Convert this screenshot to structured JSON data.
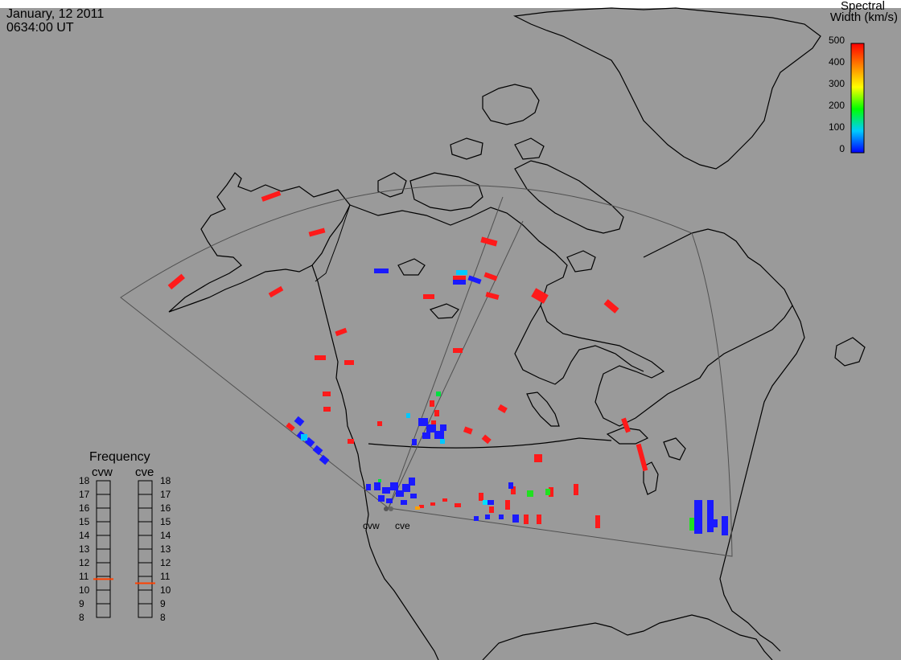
{
  "header": {
    "date": "January, 12 2011",
    "time": "0634:00 UT"
  },
  "colorbar": {
    "title_line1": "Spectral",
    "title_line2": "Width (km/s)",
    "ticks": [
      "500",
      "400",
      "300",
      "200",
      "100",
      "0"
    ],
    "min": 0,
    "max": 500
  },
  "frequency_panel": {
    "title": "Frequency",
    "columns": [
      {
        "label": "cvw",
        "selected_mhz": 10.8
      },
      {
        "label": "cve",
        "selected_mhz": 10.5
      }
    ],
    "scale_left": [
      "18",
      "17",
      "16",
      "15",
      "14",
      "13",
      "12",
      "11",
      "10",
      "9",
      "8"
    ],
    "scale_right": [
      "18",
      "17",
      "16",
      "15",
      "14",
      "13",
      "12",
      "11",
      "10",
      "9",
      "8"
    ],
    "marker_color": "#ff4000"
  },
  "radar_sites": [
    {
      "label": "cvw"
    },
    {
      "label": "cve"
    }
  ],
  "map_style": {
    "background": "#9a9a9a",
    "coast_color": "#000000",
    "fov_color": "#505050"
  }
}
